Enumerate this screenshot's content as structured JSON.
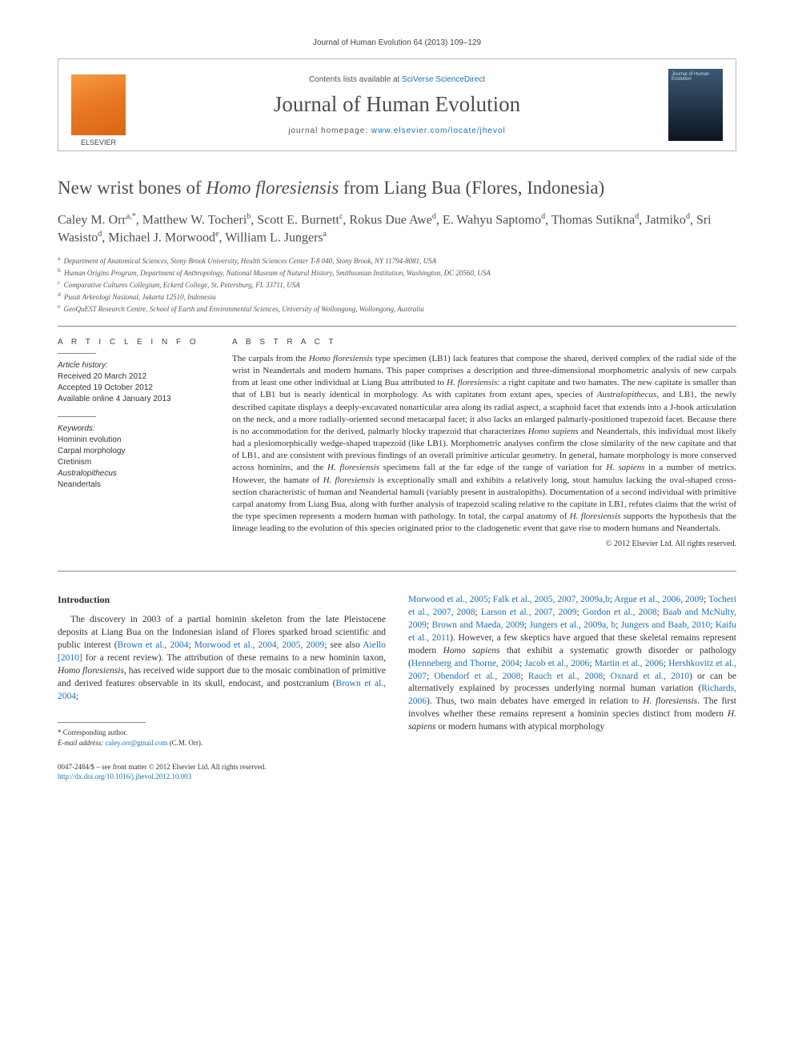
{
  "citation": "Journal of Human Evolution 64 (2013) 109–129",
  "header": {
    "contents_prefix": "Contents lists available at ",
    "contents_link": "SciVerse ScienceDirect",
    "journal": "Journal of Human Evolution",
    "homepage_prefix": "journal homepage: ",
    "homepage_url": "www.elsevier.com/locate/jhevol",
    "publisher_logo_label": "ELSEVIER"
  },
  "title_pre": "New wrist bones of ",
  "title_italic": "Homo floresiensis",
  "title_post": " from Liang Bua (Flores, Indonesia)",
  "authors_html": "Caley M. Orr<sup>a,*</sup>, Matthew W. Tocheri<sup>b</sup>, Scott E. Burnett<sup>c</sup>, Rokus Due Awe<sup>d</sup>, E. Wahyu Saptomo<sup>d</sup>, Thomas Sutikna<sup>d</sup>, Jatmiko<sup>d</sup>, Sri Wasisto<sup>d</sup>, Michael J. Morwood<sup>e</sup>, William L. Jungers<sup>a</sup>",
  "affiliations": [
    {
      "sup": "a",
      "text": "Department of Anatomical Sciences, Stony Brook University, Health Sciences Center T-8 040, Stony Brook, NY 11794-8081, USA"
    },
    {
      "sup": "b",
      "text": "Human Origins Program, Department of Anthropology, National Museum of Natural History, Smithsonian Institution, Washington, DC 20560, USA"
    },
    {
      "sup": "c",
      "text": "Comparative Cultures Collegium, Eckerd College, St. Petersburg, FL 33711, USA"
    },
    {
      "sup": "d",
      "text": "Pusat Arkeologi Nasional, Jakarta 12510, Indonesia"
    },
    {
      "sup": "e",
      "text": "GeoQuEST Research Centre, School of Earth and Environmental Sciences, University of Wollongong, Wollongong, Australia"
    }
  ],
  "article_info": {
    "label": "A R T I C L E   I N F O",
    "history_hdr": "Article history:",
    "history": [
      "Received 20 March 2012",
      "Accepted 19 October 2012",
      "Available online 4 January 2013"
    ],
    "keywords_hdr": "Keywords:",
    "keywords": [
      "Hominin evolution",
      "Carpal morphology",
      "Cretinism",
      "Australopithecus",
      "Neandertals"
    ]
  },
  "abstract": {
    "label": "A B S T R A C T",
    "text": "The carpals from the <span class=\"italic\">Homo floresiensis</span> type specimen (LB1) lack features that compose the shared, derived complex of the radial side of the wrist in Neandertals and modern humans. This paper comprises a description and three-dimensional morphometric analysis of new carpals from at least one other individual at Liang Bua attributed to <span class=\"italic\">H. floresiensis</span>: a right capitate and two hamates. The new capitate is smaller than that of LB1 but is nearly identical in morphology. As with capitates from extant apes, species of <span class=\"italic\">Australopithecus</span>, and LB1, the newly described capitate displays a deeply-excavated nonarticular area along its radial aspect, a scaphoid facet that extends into a J-hook articulation on the neck, and a more radially-oriented second metacarpal facet; it also lacks an enlarged palmarly-positioned trapezoid facet. Because there is no accommodation for the derived, palmarly blocky trapezoid that characterizes <span class=\"italic\">Homo sapiens</span> and Neandertals, this individual most likely had a plesiomorphically wedge-shaped trapezoid (like LB1). Morphometric analyses confirm the close similarity of the new capitate and that of LB1, and are consistent with previous findings of an overall primitive articular geometry. In general, hamate morphology is more conserved across hominins, and the <span class=\"italic\">H. floresiensis</span> specimens fall at the far edge of the range of variation for <span class=\"italic\">H. sapiens</span> in a number of metrics. However, the hamate of <span class=\"italic\">H. floresiensis</span> is exceptionally small and exhibits a relatively long, stout hamulus lacking the oval-shaped cross-section characteristic of human and Neandertal hamuli (variably present in australopiths). Documentation of a second individual with primitive carpal anatomy from Liang Bua, along with further analysis of trapezoid scaling relative to the capitate in LB1, refutes claims that the wrist of the type specimen represents a modern human with pathology. In total, the carpal anatomy of <span class=\"italic\">H. floresiensis</span> supports the hypothesis that the lineage leading to the evolution of this species originated prior to the cladogenetic event that gave rise to modern humans and Neandertals.",
    "copyright": "© 2012 Elsevier Ltd. All rights reserved."
  },
  "intro": {
    "heading": "Introduction",
    "col1": "The discovery in 2003 of a partial hominin skeleton from the late Pleistocene deposits at Liang Bua on the Indonesian island of Flores sparked broad scientific and public interest (<a class=\"ref-link\">Brown et al., 2004</a>; <a class=\"ref-link\">Morwood et al., 2004, 2005, 2009</a>; see also <a class=\"ref-link\">Aiello [2010]</a> for a recent review). The attribution of these remains to a new hominin taxon, <span class=\"italic\">Homo floresiensis</span>, has received wide support due to the mosaic combination of primitive and derived features observable in its skull, endocast, and postcranium (<a class=\"ref-link\">Brown et al., 2004</a>;",
    "col2": "<a class=\"ref-link\">Morwood et al., 2005</a>; <a class=\"ref-link\">Falk et al., 2005, 2007, 2009a,b</a>; <a class=\"ref-link\">Argue et al., 2006, 2009</a>; <a class=\"ref-link\">Tocheri et al., 2007, 2008</a>; <a class=\"ref-link\">Larson et al., 2007, 2009</a>; <a class=\"ref-link\">Gordon et al., 2008</a>; <a class=\"ref-link\">Baab and McNulty, 2009</a>; <a class=\"ref-link\">Brown and Maeda, 2009</a>; <a class=\"ref-link\">Jungers et al., 2009a, b</a>; <a class=\"ref-link\">Jungers and Baab, 2010</a>; <a class=\"ref-link\">Kaifu et al., 2011</a>). However, a few skeptics have argued that these skeletal remains represent modern <span class=\"italic\">Homo sapiens</span> that exhibit a systematic growth disorder or pathology (<a class=\"ref-link\">Henneberg and Thorne, 2004</a>; <a class=\"ref-link\">Jacob et al., 2006</a>; <a class=\"ref-link\">Martin et al., 2006</a>; <a class=\"ref-link\">Hershkovitz et al., 2007</a>; <a class=\"ref-link\">Obendorf et al., 2008</a>; <a class=\"ref-link\">Rauch et al., 2008</a>; <a class=\"ref-link\">Oxnard et al., 2010</a>) or can be alternatively explained by processes underlying normal human variation (<a class=\"ref-link\">Richards, 2006</a>). Thus, two main debates have emerged in relation to <span class=\"italic\">H. floresiensis</span>. The first involves whether these remains represent a hominin species distinct from modern <span class=\"italic\">H. sapiens</span> or modern humans with atypical morphology"
  },
  "footnote": {
    "corr": "* Corresponding author.",
    "email_label": "E-mail address:",
    "email": "caley.orr@gmail.com",
    "email_who": "(C.M. Orr)."
  },
  "footer": {
    "line1": "0047-2484/$ – see front matter © 2012 Elsevier Ltd. All rights reserved.",
    "doi": "http://dx.doi.org/10.1016/j.jhevol.2012.10.003"
  },
  "colors": {
    "link": "#1f6fb2",
    "text": "#333333",
    "heading": "#4d4d4d",
    "rule": "#888888",
    "elsevier_orange": "#e87722"
  }
}
